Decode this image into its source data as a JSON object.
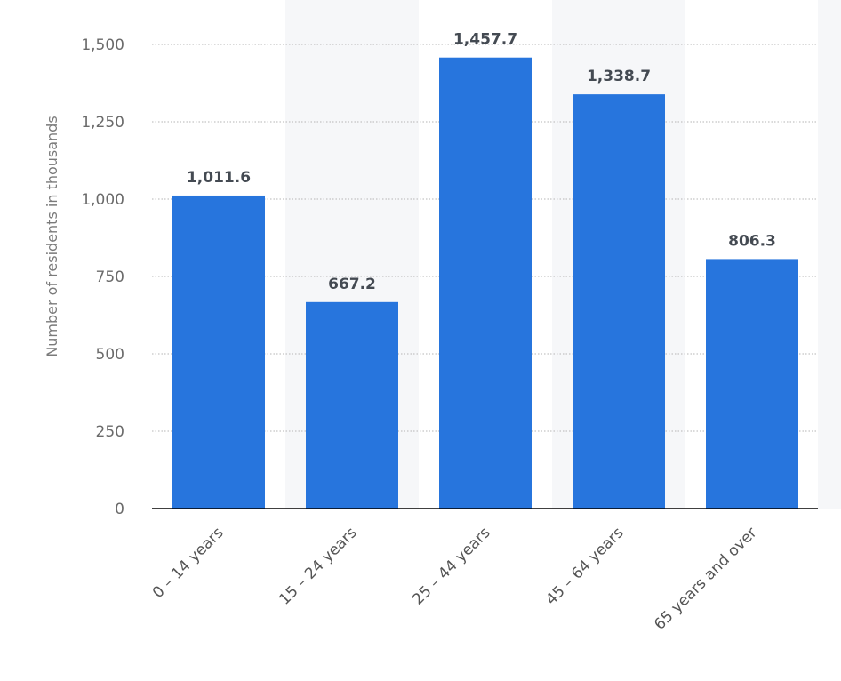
{
  "chart_data": {
    "type": "bar",
    "categories": [
      "0 – 14 years",
      "15 – 24 years",
      "25 – 44 years",
      "45 – 64 years",
      "65 years and over"
    ],
    "values": [
      1011.6,
      667.2,
      1457.7,
      1338.7,
      806.3
    ],
    "value_labels": [
      "1,011.6",
      "667.2",
      "1,457.7",
      "1,338.7",
      "806.3"
    ],
    "title": "",
    "xlabel": "",
    "ylabel": "Number of residents in thousands",
    "ylim": [
      0,
      1500
    ],
    "yticks": [
      0,
      250,
      500,
      750,
      1000,
      1250,
      1500
    ],
    "ytick_labels": [
      "0",
      "250",
      "500",
      "750",
      "1,000",
      "1,250",
      "1,500"
    ],
    "grid": true,
    "legend": "none",
    "bar_color": "#2775dd",
    "axis_color": "#000000",
    "grid_color": "#b5b5b5",
    "band_color": "#f6f7f9"
  }
}
